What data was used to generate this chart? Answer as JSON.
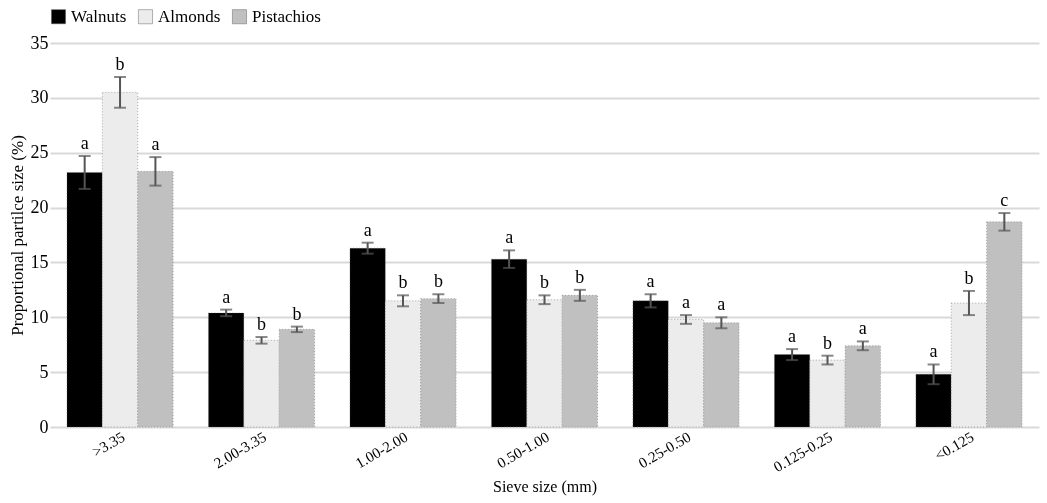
{
  "chart_data": {
    "type": "bar",
    "xlabel": "Sieve size (mm)",
    "ylabel": "Proportional partilce size (%)",
    "categories": [
      ">3.35",
      "2.00-3.35",
      "1.00-2.00",
      "0.50-1.00",
      "0.25-0.50",
      "0.125-0.25",
      "<0.125"
    ],
    "series": [
      {
        "name": "Walnuts",
        "color": "#000000",
        "values": [
          23.2,
          10.4,
          16.3,
          15.3,
          11.5,
          6.6,
          4.8
        ],
        "errors": [
          1.5,
          0.3,
          0.5,
          0.8,
          0.6,
          0.5,
          0.9
        ],
        "value_labels": [
          "a",
          "a",
          "a",
          "a",
          "a",
          "a",
          "a"
        ]
      },
      {
        "name": "Almonds",
        "color": "#ececec",
        "values": [
          30.5,
          7.9,
          11.5,
          11.6,
          9.8,
          6.1,
          11.3
        ],
        "errors": [
          1.4,
          0.3,
          0.5,
          0.4,
          0.4,
          0.4,
          1.1
        ],
        "value_labels": [
          "b",
          "b",
          "b",
          "b",
          "a",
          "b",
          "b"
        ]
      },
      {
        "name": "Pistachios",
        "color": "#c0c0c0",
        "values": [
          23.3,
          8.9,
          11.7,
          12.0,
          9.5,
          7.4,
          18.7
        ],
        "errors": [
          1.3,
          0.25,
          0.4,
          0.5,
          0.5,
          0.4,
          0.8
        ],
        "value_labels": [
          "a",
          "b",
          "b",
          "b",
          "a",
          "a",
          "c"
        ]
      }
    ],
    "ylim": [
      0,
      35
    ],
    "yticks": [
      0,
      5,
      10,
      15,
      20,
      25,
      30,
      35
    ],
    "grid": "y",
    "legend": "top"
  }
}
